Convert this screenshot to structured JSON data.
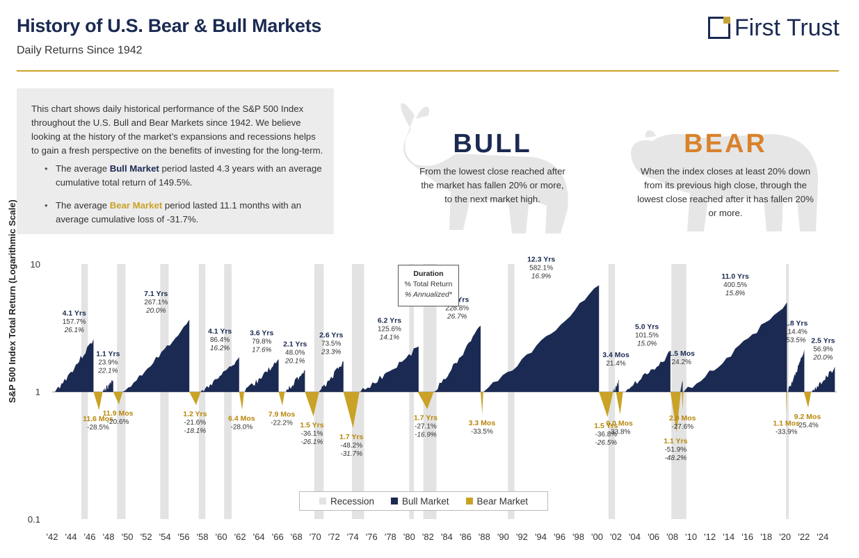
{
  "header": {
    "title": "History of U.S. Bear & Bull Markets",
    "subtitle": "Daily Returns Since 1942",
    "logo_text": "First Trust"
  },
  "colors": {
    "navy": "#1b2a52",
    "gold": "#c9a227",
    "recession": "#e3e3e3",
    "watermark": "#e6e6e6"
  },
  "info": {
    "intro": "This chart shows daily historical performance of the S&P 500 Index throughout the U.S. Bull and Bear Markets since 1942. We believe looking at the history of the market’s expansions and recessions helps to gain a fresh perspective on the benefits of investing for the long-term.",
    "bullet1": {
      "pre": "The average ",
      "kw": "Bull Market",
      "post": " period lasted 4.3 years with an average cumulative total return of 149.5%."
    },
    "bullet2": {
      "pre": "The average ",
      "kw": "Bear Market",
      "post": " period lasted 11.1 months with an average cumulative loss of -31.7%."
    }
  },
  "definitions": {
    "bull": {
      "heading": "BULL",
      "text": "From the lowest close reached after the market has fallen 20% or more, to the next market high."
    },
    "bear": {
      "heading": "BEAR",
      "text": "When the index closes at least 20% down from its previous high close, through the lowest close reached after it has fallen 20% or more."
    }
  },
  "duration_box": {
    "line1": "Duration",
    "line2": "% Total Return",
    "line3": "% Annualized*"
  },
  "legend": {
    "recession": "Recession",
    "bull": "Bull Market",
    "bear": "Bear Market"
  },
  "chart_data": {
    "type": "area",
    "ylabel": "S&P 500 Index Total Return (Logarithmic Scale)",
    "yscale": "log",
    "ylim": [
      0.1,
      10
    ],
    "yticks": [
      "10",
      "1",
      "0.1"
    ],
    "xlim": [
      1942,
      2025.5
    ],
    "xticks": [
      "'42",
      "'44",
      "'46",
      "'48",
      "'50",
      "'52",
      "'54",
      "'56",
      "'58",
      "'60",
      "'62",
      "'64",
      "'66",
      "'68",
      "'70",
      "'72",
      "'74",
      "'76",
      "'78",
      "'80",
      "'82",
      "'84",
      "'86",
      "'88",
      "'90",
      "'92",
      "'94",
      "'96",
      "'98",
      "'00",
      "'02",
      "'04",
      "'06",
      "'08",
      "'10",
      "'12",
      "'14",
      "'16",
      "'18",
      "'20",
      "'22",
      "'24"
    ],
    "recessions": [
      [
        1945.1,
        1945.8
      ],
      [
        1948.9,
        1949.8
      ],
      [
        1953.5,
        1954.4
      ],
      [
        1957.6,
        1958.3
      ],
      [
        1960.3,
        1961.1
      ],
      [
        1969.9,
        1970.9
      ],
      [
        1973.9,
        1975.2
      ],
      [
        1980.0,
        1980.5
      ],
      [
        1981.5,
        1982.9
      ],
      [
        1990.5,
        1991.2
      ],
      [
        2001.2,
        2001.9
      ],
      [
        2007.9,
        2009.5
      ],
      [
        2020.1,
        2020.3
      ]
    ],
    "bull": [
      {
        "start": 1942.3,
        "dur": 4.1,
        "value": 2.577,
        "labels": [
          "4.1 Yrs",
          "157.7%",
          "26.1%"
        ]
      },
      {
        "start": 1947.4,
        "dur": 1.1,
        "value": 1.239,
        "labels": [
          "1.1 Yrs",
          "23.9%",
          "22.1%"
        ]
      },
      {
        "start": 1949.5,
        "dur": 7.1,
        "value": 3.671,
        "labels": [
          "7.1 Yrs",
          "267.1%",
          "20.0%"
        ]
      },
      {
        "start": 1957.8,
        "dur": 4.1,
        "value": 1.864,
        "labels": [
          "4.1 Yrs",
          "86.4%",
          "16.2%"
        ]
      },
      {
        "start": 1962.5,
        "dur": 3.6,
        "value": 1.798,
        "labels": [
          "3.6 Yrs",
          "79.8%",
          "17.6%"
        ]
      },
      {
        "start": 1966.8,
        "dur": 2.1,
        "value": 1.48,
        "labels": [
          "2.1 Yrs",
          "48.0%",
          "20.1%"
        ]
      },
      {
        "start": 1970.4,
        "dur": 2.6,
        "value": 1.735,
        "labels": [
          "2.6 Yrs",
          "73.5%",
          "23.3%"
        ]
      },
      {
        "start": 1974.8,
        "dur": 6.2,
        "value": 2.256,
        "labels": [
          "6.2 Yrs",
          "125.6%",
          "14.1%"
        ]
      },
      {
        "start": 1982.6,
        "dur": 5.0,
        "value": 3.288,
        "labels": [
          "5.0 Yrs",
          "228.8%",
          "26.7%"
        ]
      },
      {
        "start": 1987.9,
        "dur": 12.3,
        "value": 6.821,
        "labels": [
          "12.3 Yrs",
          "582.1%",
          "16.9%"
        ]
      },
      {
        "start": 2001.7,
        "dur": 0.6,
        "value": 1.214,
        "labels": [
          "3.4 Mos",
          "21.4%",
          ""
        ]
      },
      {
        "start": 2002.8,
        "dur": 5.0,
        "value": 2.015,
        "labels": [
          "5.0 Yrs",
          "101.5%",
          "15.0%"
        ]
      },
      {
        "start": 2008.85,
        "dur": 0.25,
        "value": 1.242,
        "labels": [
          "1.5 Mos",
          "24.2%",
          ""
        ]
      },
      {
        "start": 2009.2,
        "dur": 11.0,
        "value": 5.005,
        "labels": [
          "11.0 Yrs",
          "400.5%",
          "15.8%"
        ]
      },
      {
        "start": 2020.25,
        "dur": 1.8,
        "value": 2.144,
        "labels": [
          "1.8 Yrs",
          "114.4%",
          "53.5%"
        ]
      },
      {
        "start": 2022.8,
        "dur": 2.5,
        "value": 1.569,
        "labels": [
          "2.5 Yrs",
          "56.9%",
          "20.0%"
        ]
      }
    ],
    "bear": [
      {
        "start": 1946.4,
        "dur": 0.97,
        "value": 0.715,
        "labels": [
          "11.6 Mos",
          "-28.5%",
          ""
        ]
      },
      {
        "start": 1948.5,
        "dur": 1.0,
        "value": 0.794,
        "labels": [
          "11.9 Mos",
          "-20.6%",
          ""
        ]
      },
      {
        "start": 1956.6,
        "dur": 1.2,
        "value": 0.784,
        "labels": [
          "1.2 Yrs",
          "-21.6%",
          "-18.1%"
        ]
      },
      {
        "start": 1961.9,
        "dur": 0.53,
        "value": 0.72,
        "labels": [
          "6.4 Mos",
          "-28.0%",
          ""
        ]
      },
      {
        "start": 1966.1,
        "dur": 0.66,
        "value": 0.778,
        "labels": [
          "7.9 Mos",
          "-22.2%",
          ""
        ]
      },
      {
        "start": 1968.9,
        "dur": 1.5,
        "value": 0.639,
        "labels": [
          "1.5 Yrs",
          "-36.1%",
          "-26.1%"
        ]
      },
      {
        "start": 1973.0,
        "dur": 1.7,
        "value": 0.518,
        "labels": [
          "1.7 Yrs",
          "-48.2%",
          "-31.7%"
        ]
      },
      {
        "start": 1980.9,
        "dur": 1.7,
        "value": 0.729,
        "labels": [
          "1.7 Yrs",
          "-27.1%",
          "-16.9%"
        ]
      },
      {
        "start": 1987.6,
        "dur": 0.28,
        "value": 0.665,
        "labels": [
          "3.3 Mos",
          "-33.5%",
          ""
        ]
      },
      {
        "start": 2000.2,
        "dur": 1.5,
        "value": 0.632,
        "labels": [
          "1.5 Yrs",
          "-36.8%",
          "-26.5%"
        ]
      },
      {
        "start": 2002.0,
        "dur": 0.75,
        "value": 0.662,
        "labels": [
          "9.0 Mos",
          "-33.8%",
          ""
        ]
      },
      {
        "start": 2007.8,
        "dur": 1.1,
        "value": 0.481,
        "labels": [
          "1.1 Yrs",
          "-51.9%",
          "-48.2%"
        ]
      },
      {
        "start": 2009.0,
        "dur": 0.17,
        "value": 0.724,
        "labels": [
          "2.0 Mos",
          "-27.6%",
          ""
        ]
      },
      {
        "start": 2020.1,
        "dur": 0.09,
        "value": 0.661,
        "labels": [
          "1.1 Mos",
          "-33.9%",
          ""
        ]
      },
      {
        "start": 2022.0,
        "dur": 0.77,
        "value": 0.746,
        "labels": [
          "9.2 Mos",
          "-25.4%",
          ""
        ]
      }
    ]
  }
}
